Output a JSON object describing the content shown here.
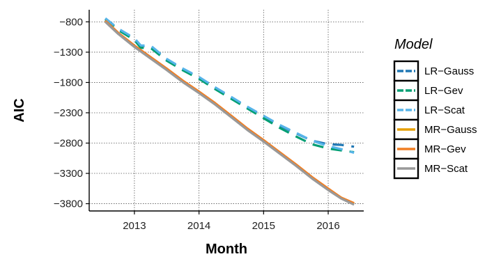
{
  "chart_data": {
    "type": "line",
    "title": "",
    "xlabel": "Month",
    "ylabel": "AIC",
    "xlim": [
      2012.3,
      2016.55
    ],
    "ylim": [
      -3920,
      -600
    ],
    "x_ticks": [
      2013,
      2014,
      2015,
      2016
    ],
    "x_tick_labels": [
      "2013",
      "2014",
      "2015",
      "2016"
    ],
    "y_ticks": [
      -800,
      -1300,
      -1800,
      -2300,
      -2800,
      -3300,
      -3800
    ],
    "y_tick_labels": [
      "−800",
      "−1300",
      "−1800",
      "−2300",
      "−2800",
      "−3300",
      "−3800"
    ],
    "grid": true,
    "legend": {
      "title": "Model",
      "position": "right"
    },
    "series": [
      {
        "name": "LR−Gauss",
        "color": "#1f77b4",
        "dash": "dashed",
        "x": [
          2012.55,
          2012.75,
          2013.0,
          2013.1,
          2013.25,
          2013.5,
          2013.75,
          2014.0,
          2014.25,
          2014.5,
          2014.75,
          2015.0,
          2015.25,
          2015.5,
          2015.75,
          2016.0,
          2016.2,
          2016.4
        ],
        "y": [
          -750,
          -920,
          -1080,
          -1200,
          -1200,
          -1420,
          -1580,
          -1720,
          -1890,
          -2050,
          -2210,
          -2360,
          -2510,
          -2640,
          -2760,
          -2820,
          -2830,
          -2860
        ]
      },
      {
        "name": "LR−Gev",
        "color": "#009e73",
        "dash": "dashed",
        "x": [
          2012.55,
          2012.75,
          2013.0,
          2013.1,
          2013.25,
          2013.5,
          2013.75,
          2014.0,
          2014.25,
          2014.5,
          2014.75,
          2015.0,
          2015.25,
          2015.5,
          2015.75,
          2016.0,
          2016.2,
          2016.4
        ],
        "y": [
          -760,
          -935,
          -1100,
          -1230,
          -1230,
          -1440,
          -1600,
          -1740,
          -1910,
          -2070,
          -2230,
          -2390,
          -2550,
          -2690,
          -2820,
          -2890,
          -2920,
          -2950
        ]
      },
      {
        "name": "LR−Scat",
        "color": "#56b4e9",
        "dash": "dashed",
        "x": [
          2012.55,
          2012.75,
          2013.0,
          2013.1,
          2013.25,
          2013.5,
          2013.75,
          2014.0,
          2014.25,
          2014.5,
          2014.75,
          2015.0,
          2015.25,
          2015.5,
          2015.75,
          2016.0,
          2016.2,
          2016.4
        ],
        "y": [
          -740,
          -910,
          -1070,
          -1190,
          -1190,
          -1410,
          -1570,
          -1710,
          -1880,
          -2040,
          -2200,
          -2350,
          -2500,
          -2630,
          -2760,
          -2850,
          -2900,
          -2960
        ]
      },
      {
        "name": "MR−Gauss",
        "color": "#e69f00",
        "dash": "solid",
        "x": [
          2012.55,
          2012.75,
          2013.0,
          2013.25,
          2013.5,
          2013.75,
          2014.0,
          2014.25,
          2014.5,
          2014.75,
          2015.0,
          2015.25,
          2015.5,
          2015.75,
          2016.0,
          2016.2,
          2016.4
        ],
        "y": [
          -790,
          -990,
          -1200,
          -1390,
          -1580,
          -1780,
          -1960,
          -2150,
          -2360,
          -2570,
          -2760,
          -2960,
          -3160,
          -3370,
          -3560,
          -3700,
          -3800
        ]
      },
      {
        "name": "MR−Gev",
        "color": "#f07f24",
        "dash": "solid",
        "x": [
          2012.55,
          2012.75,
          2013.0,
          2013.25,
          2013.5,
          2013.75,
          2014.0,
          2014.25,
          2014.5,
          2014.75,
          2015.0,
          2015.25,
          2015.5,
          2015.75,
          2016.0,
          2016.2,
          2016.4
        ],
        "y": [
          -780,
          -980,
          -1190,
          -1380,
          -1570,
          -1770,
          -1950,
          -2140,
          -2350,
          -2560,
          -2750,
          -2950,
          -3150,
          -3360,
          -3550,
          -3700,
          -3790
        ]
      },
      {
        "name": "MR−Scat",
        "color": "#999999",
        "dash": "solid",
        "x": [
          2012.55,
          2012.75,
          2013.0,
          2013.25,
          2013.5,
          2013.75,
          2014.0,
          2014.25,
          2014.5,
          2014.75,
          2015.0,
          2015.25,
          2015.5,
          2015.75,
          2016.0,
          2016.2,
          2016.4
        ],
        "y": [
          -800,
          -1000,
          -1215,
          -1405,
          -1595,
          -1795,
          -1975,
          -2165,
          -2375,
          -2585,
          -2775,
          -2975,
          -3175,
          -3385,
          -3575,
          -3715,
          -3815
        ]
      }
    ]
  }
}
